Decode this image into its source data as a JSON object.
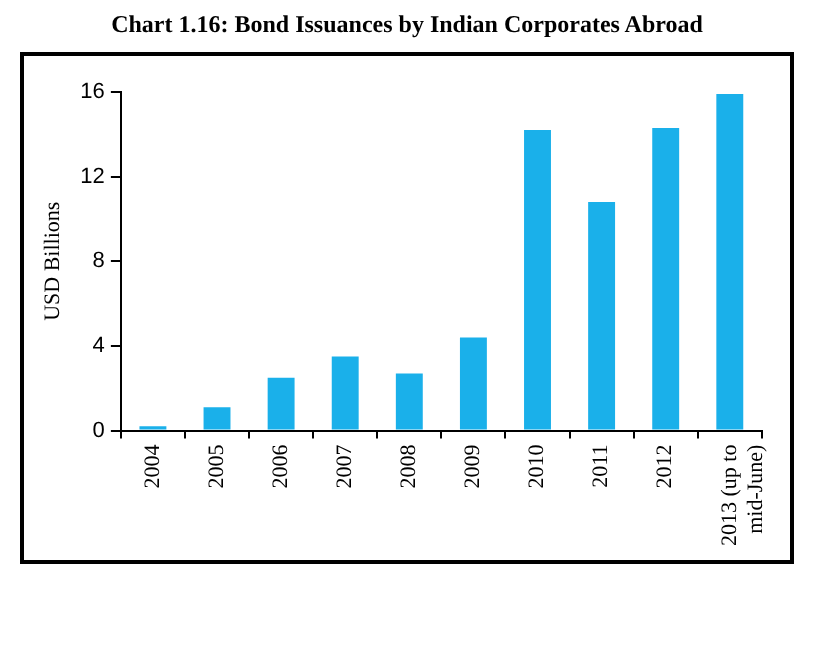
{
  "chart_data": {
    "type": "bar",
    "title": "Chart 1.16: Bond Issuances by Indian Corporates Abroad",
    "ylabel": "USD Billions",
    "categories": [
      "2004",
      "2005",
      "2006",
      "2007",
      "2008",
      "2009",
      "2010",
      "2011",
      "2012",
      "2013 (up to mid-June)"
    ],
    "values": [
      0.2,
      1.1,
      2.5,
      3.5,
      2.7,
      4.4,
      14.2,
      10.8,
      14.3,
      15.9
    ],
    "color": "#1ab0ea",
    "ylim": [
      0,
      16
    ],
    "yticks": [
      0,
      4,
      8,
      12,
      16
    ],
    "grid": false,
    "legend": false
  }
}
